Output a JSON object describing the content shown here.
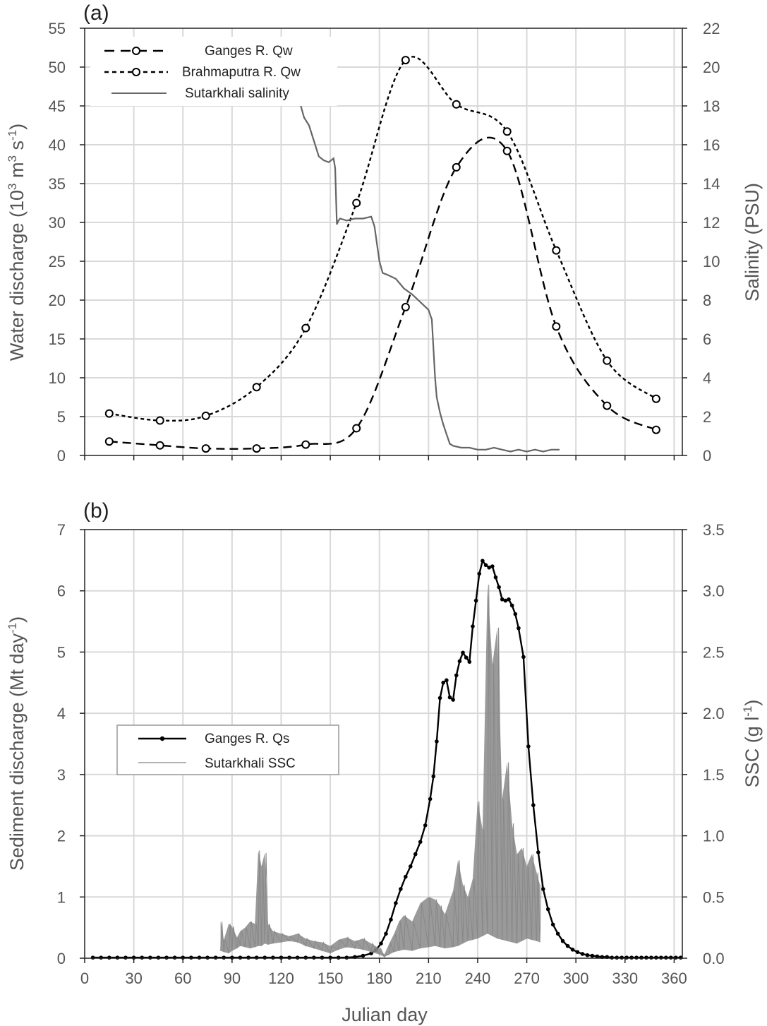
{
  "chart_data": [
    {
      "panel_label": "(a)",
      "type": "line",
      "y_axis_title": "Water discharge (10",
      "y_axis_title_sup1": "3",
      "y_axis_title_mid": " m",
      "y_axis_title_sup2": "3",
      "y_axis_title_mid2": " s",
      "y_axis_title_sup3": "-1",
      "y_axis_title_end": ")",
      "y2_axis_title": "Salinity (PSU)",
      "xlim": [
        0,
        365
      ],
      "ylim": [
        0,
        55
      ],
      "y2lim": [
        0,
        22
      ],
      "yticks": [
        "0",
        "5",
        "10",
        "15",
        "20",
        "25",
        "30",
        "35",
        "40",
        "45",
        "50",
        "55"
      ],
      "y2ticks": [
        "0",
        "2",
        "4",
        "6",
        "8",
        "10",
        "12",
        "14",
        "16",
        "18",
        "20",
        "22"
      ],
      "grid": true,
      "legend_position": "top-left",
      "legend": [
        "Ganges R. Qw",
        "Brahmaputra R. Qw",
        "Sutarkhali salinity"
      ],
      "series": [
        {
          "name": "Ganges R. Qw",
          "axis": "left",
          "style": "dashed-long",
          "marker": "open-circle",
          "color": "#000000",
          "x": [
            15,
            46,
            74,
            105,
            135,
            166,
            196,
            227,
            258,
            288,
            319,
            349
          ],
          "y": [
            1.8,
            1.3,
            0.9,
            0.9,
            1.4,
            3.5,
            19.1,
            37.1,
            39.2,
            16.6,
            6.4,
            3.3
          ]
        },
        {
          "name": "Brahmaputra R. Qw",
          "axis": "left",
          "style": "dashed-short",
          "marker": "open-circle",
          "color": "#000000",
          "x": [
            15,
            46,
            74,
            105,
            135,
            166,
            196,
            227,
            258,
            288,
            319,
            349
          ],
          "y": [
            5.4,
            4.5,
            5.1,
            8.8,
            16.4,
            32.5,
            50.9,
            45.2,
            41.7,
            26.4,
            12.2,
            7.3
          ]
        },
        {
          "name": "Sutarkhali salinity",
          "axis": "right",
          "style": "solid",
          "color": "#666666",
          "x": [
            132,
            134,
            137,
            140,
            143,
            146,
            149,
            152,
            153,
            154,
            155,
            156,
            160,
            165,
            170,
            175,
            177,
            180,
            182,
            185,
            190,
            195,
            200,
            205,
            210,
            212,
            213,
            214,
            215,
            217,
            219,
            221,
            223,
            225,
            230,
            235,
            240,
            245,
            250,
            255,
            260,
            265,
            270,
            275,
            280,
            285,
            290
          ],
          "y": [
            18.0,
            17.4,
            17.0,
            16.2,
            15.4,
            15.2,
            15.1,
            15.3,
            14.8,
            11.9,
            12.1,
            12.2,
            12.1,
            12.2,
            12.2,
            12.3,
            11.8,
            10.0,
            9.4,
            9.3,
            9.1,
            8.6,
            8.3,
            7.9,
            7.5,
            7.0,
            5.5,
            4.0,
            3.0,
            2.2,
            1.6,
            1.1,
            0.6,
            0.5,
            0.4,
            0.4,
            0.3,
            0.3,
            0.4,
            0.3,
            0.2,
            0.3,
            0.2,
            0.3,
            0.2,
            0.3,
            0.3
          ]
        }
      ]
    },
    {
      "panel_label": "(b)",
      "type": "line",
      "y_axis_title": "Sediment discharge (Mt day",
      "y_axis_title_sup1": "-1",
      "y_axis_title_end": ")",
      "y2_axis_title": "SSC (g l",
      "y2_axis_title_sup1": "-1",
      "y2_axis_title_end": ")",
      "xlabel": "Julian day",
      "xlim": [
        0,
        365
      ],
      "ylim": [
        0,
        7
      ],
      "y2lim": [
        0,
        3.5
      ],
      "xticks": [
        "0",
        "30",
        "60",
        "90",
        "120",
        "150",
        "180",
        "210",
        "240",
        "270",
        "300",
        "330",
        "360"
      ],
      "yticks": [
        "0",
        "1",
        "2",
        "3",
        "4",
        "5",
        "6",
        "7"
      ],
      "y2ticks": [
        "0.0",
        "0.5",
        "1.0",
        "1.5",
        "2.0",
        "2.5",
        "3.0",
        "3.5"
      ],
      "grid": true,
      "legend_position": "center-left",
      "legend": [
        "Ganges R. Qs",
        "Sutarkhali SSC"
      ],
      "series": [
        {
          "name": "Ganges R. Qs",
          "axis": "left",
          "style": "solid",
          "marker": "filled-dot",
          "color": "#000000",
          "x": [
            5,
            10,
            15,
            20,
            25,
            30,
            35,
            40,
            45,
            50,
            55,
            60,
            65,
            70,
            75,
            80,
            85,
            90,
            95,
            100,
            105,
            110,
            115,
            120,
            125,
            130,
            135,
            140,
            145,
            150,
            155,
            160,
            165,
            170,
            175,
            178,
            181,
            184,
            187,
            190,
            193,
            196,
            199,
            202,
            205,
            208,
            211,
            213,
            215,
            217,
            219,
            221,
            223,
            225,
            227,
            229,
            231,
            233,
            235,
            237,
            239,
            241,
            243,
            245,
            247,
            249,
            251,
            253,
            255,
            257,
            259,
            261,
            263,
            265,
            268,
            271,
            274,
            277,
            280,
            283,
            286,
            289,
            292,
            295,
            298,
            301,
            304,
            307,
            310,
            313,
            316,
            319,
            322,
            325,
            328,
            331,
            334,
            337,
            340,
            343,
            346,
            349,
            352,
            355,
            358,
            361,
            364
          ],
          "y": [
            0.01,
            0.01,
            0.01,
            0.01,
            0.01,
            0.01,
            0.01,
            0.01,
            0.01,
            0.01,
            0.01,
            0.01,
            0.01,
            0.01,
            0.01,
            0.01,
            0.01,
            0.01,
            0.01,
            0.01,
            0.01,
            0.01,
            0.01,
            0.01,
            0.01,
            0.01,
            0.01,
            0.01,
            0.01,
            0.01,
            0.01,
            0.01,
            0.02,
            0.04,
            0.08,
            0.14,
            0.24,
            0.4,
            0.63,
            0.9,
            1.13,
            1.33,
            1.5,
            1.7,
            1.9,
            2.17,
            2.6,
            2.97,
            3.54,
            4.25,
            4.5,
            4.54,
            4.26,
            4.22,
            4.62,
            4.85,
            4.99,
            4.91,
            4.84,
            5.42,
            5.84,
            6.28,
            6.49,
            6.42,
            6.38,
            6.4,
            6.22,
            6.06,
            5.86,
            5.84,
            5.86,
            5.76,
            5.62,
            5.39,
            4.92,
            3.46,
            2.5,
            1.73,
            1.13,
            0.8,
            0.55,
            0.4,
            0.28,
            0.2,
            0.14,
            0.1,
            0.07,
            0.05,
            0.04,
            0.03,
            0.02,
            0.02,
            0.01,
            0.01,
            0.01,
            0.01,
            0.01,
            0.01,
            0.01,
            0.01,
            0.01,
            0.01,
            0.01,
            0.01,
            0.01,
            0.01,
            0.01
          ]
        },
        {
          "name": "Sutarkhali SSC",
          "axis": "right",
          "style": "solid-thin-band",
          "color": "#888888",
          "x": [
            83,
            85,
            88,
            90,
            93,
            95,
            98,
            101,
            104,
            106,
            108,
            110,
            112,
            115,
            120,
            125,
            130,
            135,
            140,
            145,
            150,
            155,
            160,
            165,
            170,
            175,
            180,
            183,
            186,
            189,
            192,
            195,
            200,
            205,
            210,
            214,
            217,
            220,
            225,
            228,
            231,
            234,
            237,
            240,
            243,
            246,
            249,
            252,
            255,
            258,
            261,
            264,
            267,
            270,
            273,
            276,
            278
          ],
          "low": [
            0.06,
            0.05,
            0.04,
            0.06,
            0.08,
            0.1,
            0.09,
            0.08,
            0.09,
            0.1,
            0.1,
            0.12,
            0.11,
            0.12,
            0.13,
            0.14,
            0.13,
            0.1,
            0.08,
            0.06,
            0.04,
            0.07,
            0.09,
            0.08,
            0.07,
            0.05,
            0.03,
            0.01,
            0.03,
            0.05,
            0.06,
            0.07,
            0.06,
            0.08,
            0.09,
            0.1,
            0.09,
            0.08,
            0.09,
            0.1,
            0.12,
            0.14,
            0.15,
            0.16,
            0.18,
            0.2,
            0.18,
            0.16,
            0.15,
            0.14,
            0.13,
            0.12,
            0.14,
            0.16,
            0.15,
            0.14,
            0.13
          ],
          "high": [
            0.3,
            0.15,
            0.28,
            0.26,
            0.17,
            0.22,
            0.25,
            0.3,
            0.28,
            0.88,
            0.75,
            0.86,
            0.28,
            0.22,
            0.2,
            0.18,
            0.2,
            0.16,
            0.14,
            0.13,
            0.1,
            0.15,
            0.17,
            0.14,
            0.16,
            0.12,
            0.08,
            0.03,
            0.12,
            0.2,
            0.3,
            0.35,
            0.3,
            0.45,
            0.5,
            0.48,
            0.43,
            0.36,
            0.55,
            0.8,
            0.6,
            0.5,
            0.65,
            1.28,
            1.05,
            3.05,
            2.4,
            2.7,
            1.3,
            1.6,
            1.1,
            0.85,
            0.9,
            0.75,
            0.85,
            0.7,
            0.6
          ]
        }
      ]
    }
  ]
}
